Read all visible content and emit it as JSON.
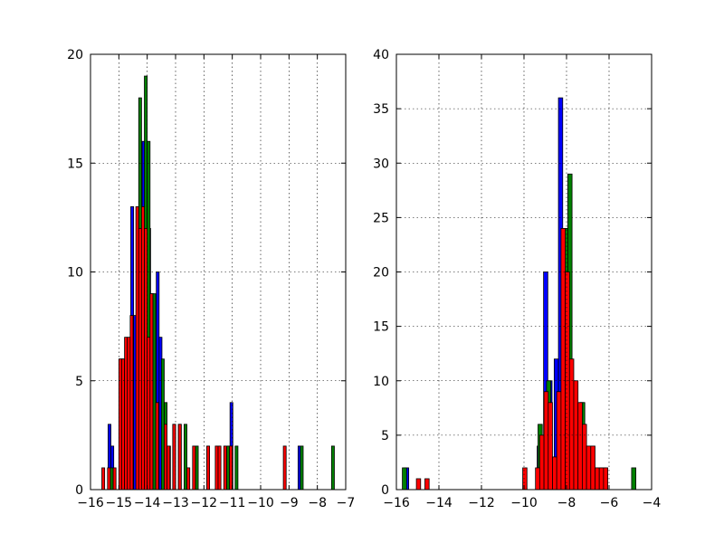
{
  "chart_data": [
    {
      "type": "bar",
      "title": "",
      "xlabel": "",
      "ylabel": "",
      "xlim": [
        -16,
        -7
      ],
      "ylim": [
        0,
        20
      ],
      "grid": true,
      "xticks": [
        -16,
        -15,
        -14,
        -13,
        -12,
        -11,
        -10,
        -9,
        -8,
        -7
      ],
      "xtick_labels": [
        "−16",
        "−15",
        "−14",
        "−13",
        "−12",
        "−11",
        "−10",
        "−9",
        "−8",
        "−7"
      ],
      "yticks": [
        0,
        5,
        10,
        15,
        20
      ],
      "ytick_labels": [
        "0",
        "5",
        "10",
        "15",
        "20"
      ],
      "series": [
        {
          "color": "#0000ff",
          "bins": [
            [
              -15.38,
              -15.28,
              3
            ],
            [
              -15.28,
              -15.18,
              2
            ],
            [
              -14.98,
              -14.88,
              6
            ],
            [
              -14.58,
              -14.48,
              13
            ],
            [
              -14.48,
              -14.38,
              8
            ],
            [
              -14.38,
              -14.28,
              12
            ],
            [
              -14.18,
              -14.08,
              16
            ],
            [
              -13.98,
              -13.88,
              12
            ],
            [
              -13.88,
              -13.78,
              9
            ],
            [
              -13.68,
              -13.58,
              10
            ],
            [
              -13.58,
              -13.48,
              7
            ],
            [
              -13.28,
              -13.18,
              2
            ],
            [
              -11.28,
              -11.18,
              2
            ],
            [
              -11.08,
              -10.98,
              4
            ],
            [
              -8.68,
              -8.58,
              2
            ]
          ]
        },
        {
          "color": "#008000",
          "bins": [
            [
              -15.3,
              -15.2,
              1
            ],
            [
              -14.9,
              -14.8,
              6
            ],
            [
              -14.3,
              -14.2,
              18
            ],
            [
              -14.1,
              -14.0,
              19
            ],
            [
              -14.0,
              -13.9,
              16
            ],
            [
              -13.8,
              -13.7,
              9
            ],
            [
              -13.5,
              -13.4,
              6
            ],
            [
              -13.4,
              -13.3,
              4
            ],
            [
              -13.1,
              -13.0,
              3
            ],
            [
              -12.9,
              -12.8,
              3
            ],
            [
              -12.7,
              -12.6,
              3
            ],
            [
              -12.6,
              -12.5,
              1
            ],
            [
              -12.3,
              -12.2,
              2
            ],
            [
              -11.9,
              -11.8,
              2
            ],
            [
              -11.2,
              -11.1,
              2
            ],
            [
              -10.9,
              -10.8,
              2
            ],
            [
              -8.6,
              -8.5,
              2
            ],
            [
              -7.5,
              -7.4,
              2
            ]
          ]
        },
        {
          "color": "#ff0000",
          "bins": [
            [
              -15.6,
              -15.5,
              1
            ],
            [
              -15.4,
              -15.3,
              1
            ],
            [
              -15.2,
              -15.1,
              1
            ],
            [
              -15.0,
              -14.9,
              6
            ],
            [
              -14.9,
              -14.8,
              6
            ],
            [
              -14.8,
              -14.7,
              7
            ],
            [
              -14.7,
              -14.6,
              7
            ],
            [
              -14.6,
              -14.5,
              8
            ],
            [
              -14.4,
              -14.3,
              13
            ],
            [
              -14.3,
              -14.2,
              12
            ],
            [
              -14.2,
              -14.1,
              13
            ],
            [
              -14.1,
              -14.0,
              12
            ],
            [
              -14.0,
              -13.9,
              7
            ],
            [
              -13.9,
              -13.8,
              9
            ],
            [
              -13.7,
              -13.6,
              4
            ],
            [
              -13.4,
              -13.3,
              3
            ],
            [
              -13.3,
              -13.2,
              2
            ],
            [
              -13.1,
              -13.0,
              3
            ],
            [
              -12.9,
              -12.8,
              3
            ],
            [
              -12.6,
              -12.5,
              1
            ],
            [
              -12.4,
              -12.3,
              2
            ],
            [
              -11.9,
              -11.8,
              2
            ],
            [
              -11.6,
              -11.5,
              2
            ],
            [
              -11.5,
              -11.4,
              2
            ],
            [
              -11.3,
              -11.2,
              2
            ],
            [
              -11.1,
              -11.0,
              2
            ],
            [
              -9.2,
              -9.1,
              2
            ]
          ]
        }
      ]
    },
    {
      "type": "bar",
      "title": "",
      "xlabel": "",
      "ylabel": "",
      "xlim": [
        -16,
        -4
      ],
      "ylim": [
        0,
        40
      ],
      "grid": true,
      "xticks": [
        -16,
        -14,
        -12,
        -10,
        -8,
        -6,
        -4
      ],
      "xtick_labels": [
        "−16",
        "−14",
        "−12",
        "−10",
        "−8",
        "−6",
        "−4"
      ],
      "yticks": [
        0,
        5,
        10,
        15,
        20,
        25,
        30,
        35,
        40
      ],
      "ytick_labels": [
        "0",
        "5",
        "10",
        "15",
        "20",
        "25",
        "30",
        "35",
        "40"
      ],
      "series": [
        {
          "color": "#0000ff",
          "bins": [
            [
              -15.62,
              -15.42,
              2
            ],
            [
              -9.38,
              -9.18,
              4
            ],
            [
              -9.08,
              -8.88,
              20
            ],
            [
              -8.88,
              -8.68,
              10
            ],
            [
              -8.58,
              -8.38,
              12
            ],
            [
              -8.38,
              -8.18,
              36
            ],
            [
              -8.18,
              -7.98,
              24
            ],
            [
              -7.78,
              -7.58,
              10
            ],
            [
              -7.38,
              -7.18,
              8
            ],
            [
              -6.48,
              -6.28,
              2
            ]
          ]
        },
        {
          "color": "#008000",
          "bins": [
            [
              -15.72,
              -15.52,
              2
            ],
            [
              -9.34,
              -9.14,
              6
            ],
            [
              -8.94,
              -8.74,
              10
            ],
            [
              -8.14,
              -7.94,
              24
            ],
            [
              -7.94,
              -7.74,
              29
            ],
            [
              -7.34,
              -7.14,
              8
            ],
            [
              -6.74,
              -6.54,
              2
            ],
            [
              -6.34,
              -6.14,
              2
            ],
            [
              -4.94,
              -4.74,
              2
            ]
          ]
        },
        {
          "color": "#ff0000",
          "bins": [
            [
              -15.06,
              -14.86,
              1
            ],
            [
              -14.66,
              -14.46,
              1
            ],
            [
              -10.06,
              -9.86,
              2
            ],
            [
              -9.46,
              -9.26,
              2
            ],
            [
              -9.26,
              -9.06,
              5
            ],
            [
              -9.06,
              -8.86,
              9
            ],
            [
              -8.86,
              -8.66,
              8
            ],
            [
              -8.66,
              -8.46,
              3
            ],
            [
              -8.46,
              -8.26,
              9
            ],
            [
              -8.26,
              -8.06,
              24
            ],
            [
              -8.06,
              -7.86,
              20
            ],
            [
              -7.86,
              -7.66,
              12
            ],
            [
              -7.66,
              -7.46,
              10
            ],
            [
              -7.46,
              -7.26,
              8
            ],
            [
              -7.26,
              -7.06,
              6
            ],
            [
              -7.06,
              -6.86,
              4
            ],
            [
              -6.86,
              -6.66,
              4
            ],
            [
              -6.66,
              -6.46,
              2
            ],
            [
              -6.46,
              -6.26,
              2
            ],
            [
              -6.26,
              -6.06,
              2
            ]
          ]
        }
      ]
    }
  ]
}
